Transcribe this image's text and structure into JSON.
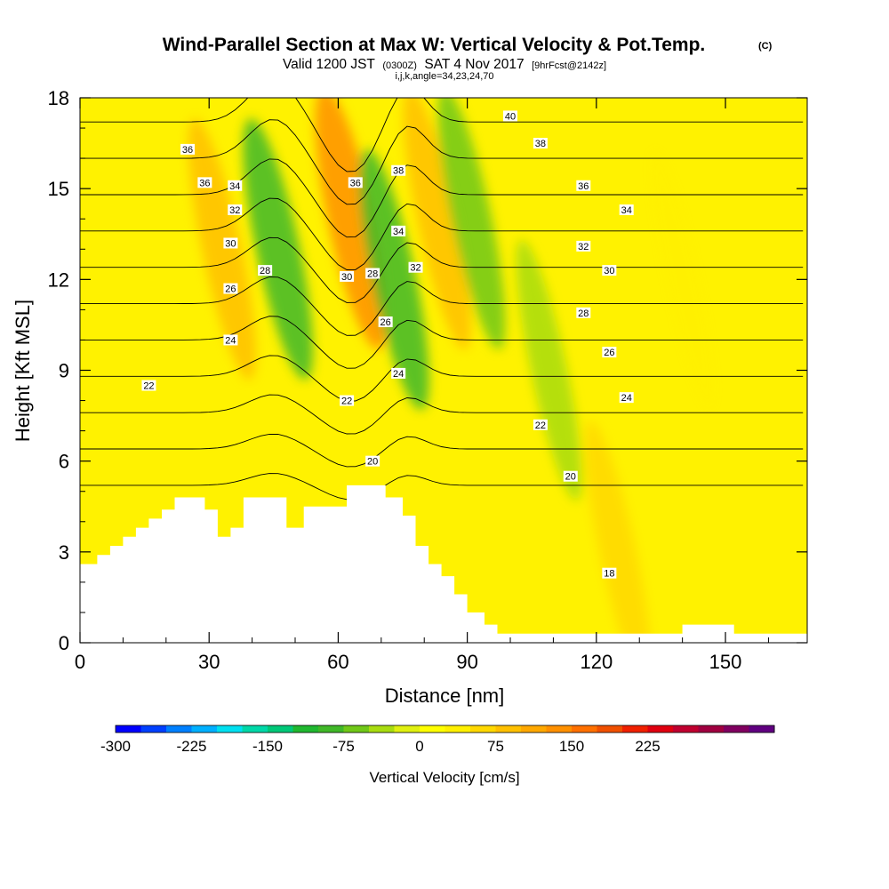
{
  "chart_data": {
    "type": "heatmap",
    "title": "Wind-Parallel Section at Max W: Vertical Velocity & Pot.Temp.",
    "title_mark": "(C)",
    "subtitle": {
      "valid": "Valid 1200 JST",
      "utc": "(0300Z)",
      "date": "SAT 4 Nov 2017",
      "fcst": "[9hrFcst@2142z]"
    },
    "subtitle2": "i,j,k,angle=34,23,24,70",
    "xlabel": "Distance [nm]",
    "ylabel": "Height [Kft MSL]",
    "xlim": [
      0,
      169
    ],
    "ylim": [
      0,
      18
    ],
    "x_ticks": [
      "0",
      "30",
      "60",
      "90",
      "120",
      "150"
    ],
    "y_ticks": [
      "0",
      "3",
      "6",
      "9",
      "12",
      "15",
      "18"
    ],
    "colorbar": {
      "label": "Vertical Velocity [cm/s]",
      "ticks": [
        "-300",
        "-225",
        "-150",
        "-75",
        "0",
        "75",
        "150",
        "225"
      ],
      "tick_values": [
        -300,
        -225,
        -150,
        -75,
        0,
        75,
        150,
        225
      ],
      "min": -300,
      "step": 25,
      "colors": [
        "#0000ff",
        "#0040ff",
        "#0080ff",
        "#00b0ff",
        "#00e0f0",
        "#00d8a8",
        "#00c878",
        "#20b830",
        "#40b828",
        "#70c818",
        "#a8dc10",
        "#e0f010",
        "#ffff00",
        "#fff000",
        "#ffd800",
        "#ffc000",
        "#ffa800",
        "#ff9000",
        "#ff7000",
        "#f05000",
        "#f02000",
        "#e00010",
        "#c00030",
        "#a00040",
        "#800060",
        "#600080"
      ]
    },
    "theta_contours": {
      "levels": [
        18,
        20,
        22,
        24,
        26,
        28,
        30,
        32,
        34,
        36,
        38,
        40
      ],
      "labels": [
        {
          "text": "36",
          "x": 25,
          "y": 16.3
        },
        {
          "text": "36",
          "x": 29,
          "y": 15.2
        },
        {
          "text": "34",
          "x": 36,
          "y": 15.1
        },
        {
          "text": "32",
          "x": 36,
          "y": 14.3
        },
        {
          "text": "30",
          "x": 35,
          "y": 13.2
        },
        {
          "text": "28",
          "x": 43,
          "y": 12.3
        },
        {
          "text": "26",
          "x": 35,
          "y": 11.7
        },
        {
          "text": "24",
          "x": 35,
          "y": 10.0
        },
        {
          "text": "22",
          "x": 16,
          "y": 8.5
        },
        {
          "text": "36",
          "x": 64,
          "y": 15.2
        },
        {
          "text": "30",
          "x": 62,
          "y": 12.1
        },
        {
          "text": "28",
          "x": 68,
          "y": 12.2
        },
        {
          "text": "26",
          "x": 71,
          "y": 10.6
        },
        {
          "text": "38",
          "x": 74,
          "y": 15.6
        },
        {
          "text": "34",
          "x": 74,
          "y": 13.6
        },
        {
          "text": "32",
          "x": 78,
          "y": 12.4
        },
        {
          "text": "24",
          "x": 74,
          "y": 8.9
        },
        {
          "text": "22",
          "x": 62,
          "y": 8.0
        },
        {
          "text": "20",
          "x": 68,
          "y": 6.0
        },
        {
          "text": "40",
          "x": 100,
          "y": 17.4
        },
        {
          "text": "38",
          "x": 107,
          "y": 16.5
        },
        {
          "text": "36",
          "x": 117,
          "y": 15.1
        },
        {
          "text": "34",
          "x": 127,
          "y": 14.3
        },
        {
          "text": "32",
          "x": 117,
          "y": 13.1
        },
        {
          "text": "30",
          "x": 123,
          "y": 12.3
        },
        {
          "text": "28",
          "x": 117,
          "y": 10.9
        },
        {
          "text": "26",
          "x": 123,
          "y": 9.6
        },
        {
          "text": "24",
          "x": 127,
          "y": 8.1
        },
        {
          "text": "22",
          "x": 107,
          "y": 7.2
        },
        {
          "text": "20",
          "x": 114,
          "y": 5.5
        },
        {
          "text": "18",
          "x": 123,
          "y": 2.3
        }
      ]
    },
    "terrain_profile": [
      [
        0,
        0
      ],
      [
        0,
        2.6
      ],
      [
        4,
        2.6
      ],
      [
        4,
        2.9
      ],
      [
        7,
        2.9
      ],
      [
        7,
        3.2
      ],
      [
        10,
        3.2
      ],
      [
        10,
        3.5
      ],
      [
        13,
        3.5
      ],
      [
        13,
        3.8
      ],
      [
        16,
        3.8
      ],
      [
        16,
        4.1
      ],
      [
        19,
        4.1
      ],
      [
        19,
        4.4
      ],
      [
        22,
        4.4
      ],
      [
        22,
        4.8
      ],
      [
        29,
        4.8
      ],
      [
        29,
        4.4
      ],
      [
        32,
        4.4
      ],
      [
        32,
        3.5
      ],
      [
        35,
        3.5
      ],
      [
        35,
        3.8
      ],
      [
        38,
        3.8
      ],
      [
        38,
        4.8
      ],
      [
        48,
        4.8
      ],
      [
        48,
        3.8
      ],
      [
        52,
        3.8
      ],
      [
        52,
        4.5
      ],
      [
        62,
        4.5
      ],
      [
        62,
        5.2
      ],
      [
        71,
        5.2
      ],
      [
        71,
        4.8
      ],
      [
        75,
        4.8
      ],
      [
        75,
        4.2
      ],
      [
        78,
        4.2
      ],
      [
        78,
        3.2
      ],
      [
        81,
        3.2
      ],
      [
        81,
        2.6
      ],
      [
        84,
        2.6
      ],
      [
        84,
        2.2
      ],
      [
        87,
        2.2
      ],
      [
        87,
        1.6
      ],
      [
        90,
        1.6
      ],
      [
        90,
        1.0
      ],
      [
        94,
        1.0
      ],
      [
        94,
        0.6
      ],
      [
        97,
        0.6
      ],
      [
        97,
        0.3
      ],
      [
        140,
        0.3
      ],
      [
        140,
        0.6
      ],
      [
        152,
        0.6
      ],
      [
        152,
        0.3
      ],
      [
        169,
        0.3
      ],
      [
        169,
        0
      ]
    ],
    "vertical_velocity_features": [
      {
        "sign": "up",
        "x": 33,
        "y": 13,
        "strength": 75
      },
      {
        "sign": "down",
        "x": 46,
        "y": 13,
        "strength": -100
      },
      {
        "sign": "up",
        "x": 63,
        "y": 14,
        "strength": 125
      },
      {
        "sign": "down",
        "x": 73,
        "y": 12,
        "strength": -100
      },
      {
        "sign": "up",
        "x": 83,
        "y": 14,
        "strength": 75
      },
      {
        "sign": "down",
        "x": 91,
        "y": 14,
        "strength": -75
      },
      {
        "sign": "down",
        "x": 109,
        "y": 9,
        "strength": -50
      },
      {
        "sign": "up",
        "x": 140,
        "y": 12,
        "strength": 25
      },
      {
        "sign": "up",
        "x": 125,
        "y": 3,
        "strength": 50
      }
    ]
  }
}
